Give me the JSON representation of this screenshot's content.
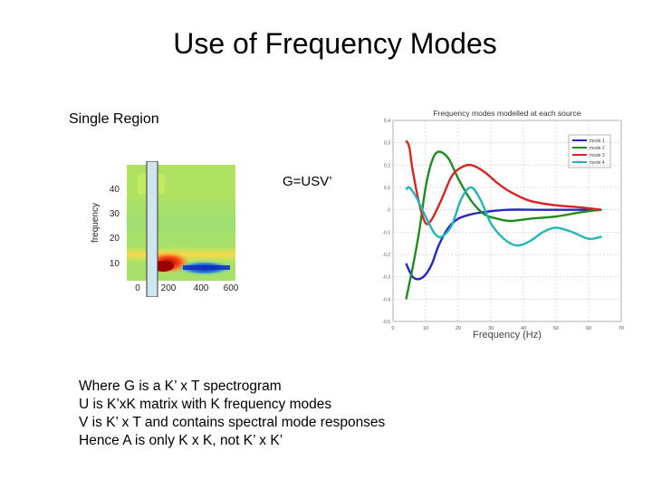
{
  "slide": {
    "title": "Use of Frequency Modes",
    "region_label": "Single Region",
    "equation": "G=USV’",
    "notes": [
      "Where G is a K’ x T spectrogram",
      "U is K’xK matrix with K frequency modes",
      "V is K’ x T and contains spectral mode responses",
      "Hence A is only K x K, not K’ x K’"
    ]
  },
  "spectrogram": {
    "ylabel": "frequency",
    "y_ticks": [
      "40",
      "30",
      "20",
      "10"
    ],
    "x_ticks": [
      "0",
      "200",
      "400",
      "600"
    ]
  },
  "chart_data": {
    "type": "line",
    "title": "Frequency modes modelled at each source",
    "xlabel": "Frequency (Hz)",
    "xlim": [
      0,
      70
    ],
    "ylim": [
      -0.5,
      0.4
    ],
    "x_ticks": [
      "0",
      "10",
      "20",
      "30",
      "40",
      "50",
      "60",
      "70"
    ],
    "y_ticks": [
      "0.4",
      "0.3",
      "0.2",
      "0.1",
      "0",
      "-0.1",
      "-0.2",
      "-0.3",
      "-0.4",
      "-0.5"
    ],
    "legend_position": "top-right",
    "series": [
      {
        "name": "mode 1",
        "color": "#2525c8",
        "x": [
          4,
          6,
          8,
          10,
          12,
          14,
          17,
          20,
          24,
          28,
          35,
          45,
          55,
          63
        ],
        "y": [
          -0.24,
          -0.3,
          -0.31,
          -0.29,
          -0.24,
          -0.16,
          -0.08,
          -0.04,
          -0.02,
          -0.01,
          0.0,
          0.0,
          0.0,
          0.0
        ]
      },
      {
        "name": "mode 2",
        "color": "#1e8c1e",
        "x": [
          4,
          6,
          8,
          10,
          12,
          14,
          17,
          20,
          24,
          28,
          32,
          36,
          42,
          50,
          58,
          64
        ],
        "y": [
          -0.4,
          -0.26,
          -0.1,
          0.1,
          0.22,
          0.26,
          0.23,
          0.14,
          0.04,
          -0.02,
          -0.04,
          -0.05,
          -0.04,
          -0.03,
          -0.01,
          0.0
        ]
      },
      {
        "name": "mode 3",
        "color": "#dd2222",
        "x": [
          4,
          5,
          6,
          8,
          10,
          12,
          15,
          18,
          21,
          24,
          28,
          32,
          36,
          42,
          50,
          58,
          64
        ],
        "y": [
          0.31,
          0.28,
          0.18,
          0.03,
          -0.06,
          -0.04,
          0.05,
          0.15,
          0.19,
          0.2,
          0.17,
          0.12,
          0.08,
          0.04,
          0.02,
          0.01,
          0.0
        ]
      },
      {
        "name": "mode 4",
        "color": "#1fb8b8",
        "x": [
          4,
          5,
          7,
          9,
          11,
          13,
          15,
          18,
          21,
          24,
          27,
          30,
          34,
          38,
          42,
          46,
          50,
          55,
          60,
          64
        ],
        "y": [
          0.09,
          0.1,
          0.06,
          0.0,
          -0.06,
          -0.11,
          -0.12,
          -0.07,
          0.05,
          0.1,
          0.04,
          -0.06,
          -0.13,
          -0.16,
          -0.14,
          -0.1,
          -0.08,
          -0.1,
          -0.13,
          -0.12
        ]
      }
    ]
  }
}
